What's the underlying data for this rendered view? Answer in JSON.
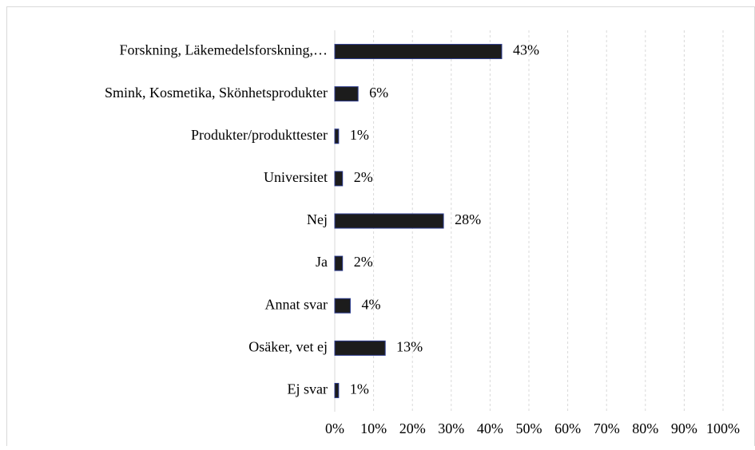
{
  "chart_data": {
    "type": "barh",
    "categories": [
      "Forskning, Läkemedelsforskning,…",
      "Smink, Kosmetika, Skönhetsprodukter",
      "Produkter/produkttester",
      "Universitet",
      "Nej",
      "Ja",
      "Annat svar",
      "Osäker, vet ej",
      "Ej svar"
    ],
    "values": [
      43,
      6,
      1,
      2,
      28,
      2,
      4,
      13,
      1
    ],
    "value_labels": [
      "43%",
      "6%",
      "1%",
      "2%",
      "28%",
      "2%",
      "4%",
      "13%",
      "1%"
    ],
    "color": "#1c1c1c",
    "xlim": [
      0,
      100
    ],
    "xticks": [
      {
        "value": 0,
        "label": "0%"
      },
      {
        "value": 10,
        "label": "10%"
      },
      {
        "value": 20,
        "label": "20%"
      },
      {
        "value": 30,
        "label": "30%"
      },
      {
        "value": 40,
        "label": "40%"
      },
      {
        "value": 50,
        "label": "50%"
      },
      {
        "value": 60,
        "label": "60%"
      },
      {
        "value": 70,
        "label": "70%"
      },
      {
        "value": 80,
        "label": "80%"
      },
      {
        "value": 90,
        "label": "90%"
      },
      {
        "value": 100,
        "label": "100%"
      }
    ],
    "grid": true
  }
}
